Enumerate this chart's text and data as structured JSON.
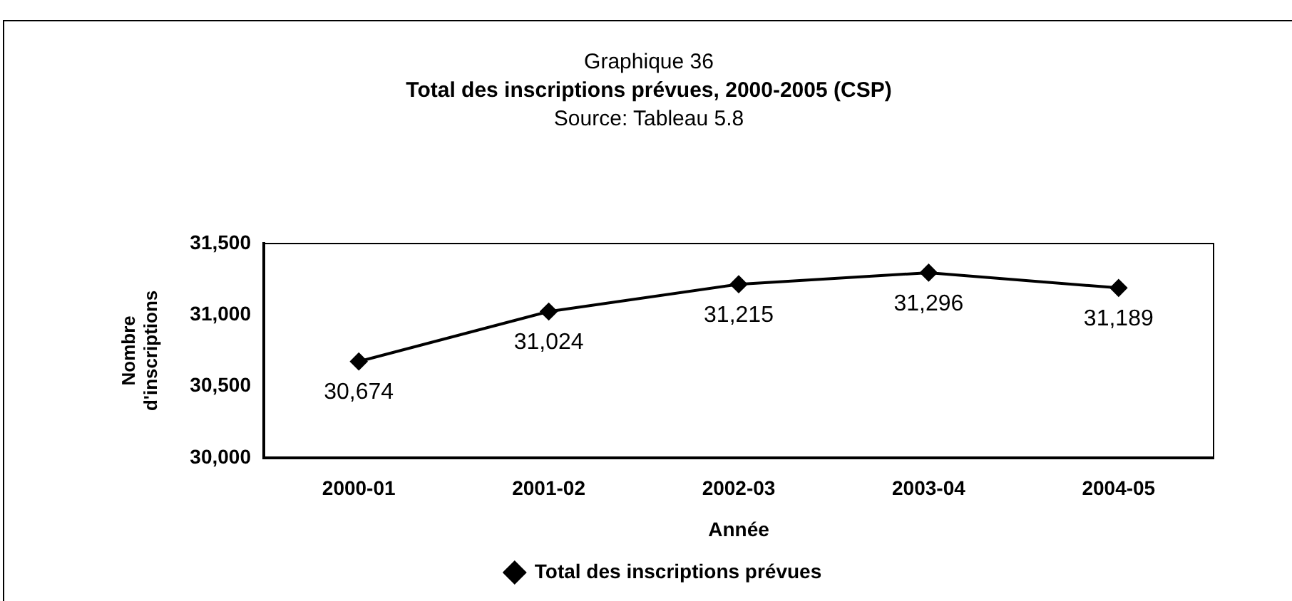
{
  "chart_data": {
    "type": "line",
    "title": "Graphique 36",
    "subtitle": "Total des inscriptions prévues, 2000-2005 (CSP)",
    "annotations": [
      "Source: Tableau 5.8"
    ],
    "xlabel": "Année",
    "ylabel": "Nombre d'inscriptions",
    "categories": [
      "2000-01",
      "2001-02",
      "2002-03",
      "2003-04",
      "2004-05"
    ],
    "series": [
      {
        "name": "Total des inscriptions prévues",
        "color": "#000000",
        "values": [
          30674,
          31024,
          31215,
          31296,
          31189
        ],
        "value_labels": [
          "30,674",
          "31,024",
          "31,215",
          "31,296",
          "31,189"
        ]
      }
    ],
    "ylim": [
      30000,
      31500
    ],
    "yticks": [
      {
        "value": 30000,
        "label": "30,000"
      },
      {
        "value": 30500,
        "label": "30,500"
      },
      {
        "value": 31000,
        "label": "31,000"
      },
      {
        "value": 31500,
        "label": "31,500"
      }
    ],
    "grid": false,
    "legend": "bottom",
    "marker": "diamond",
    "line_style": "solid"
  }
}
